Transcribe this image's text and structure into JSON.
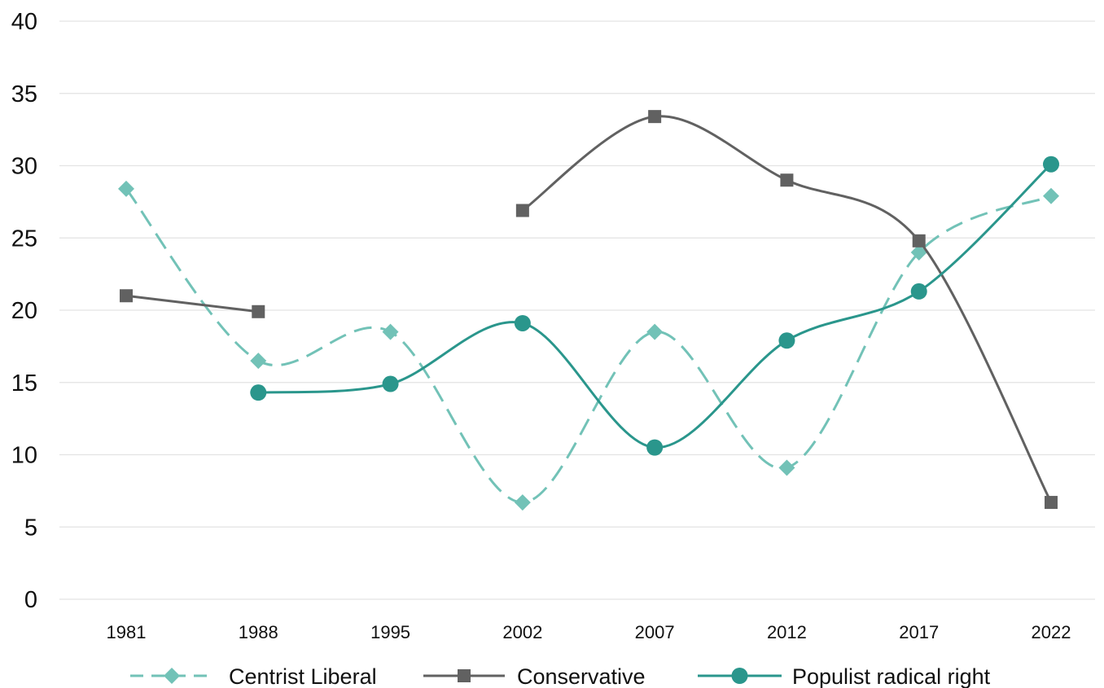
{
  "chart_data": {
    "type": "line",
    "title": "",
    "xlabel": "",
    "ylabel": "",
    "categories": [
      "1981",
      "1988",
      "1995",
      "2002",
      "2007",
      "2012",
      "2017",
      "2022"
    ],
    "ylim": [
      0,
      40
    ],
    "yticks": [
      0,
      5,
      10,
      15,
      20,
      25,
      30,
      35,
      40
    ],
    "grid": "horizontal",
    "legend_position": "bottom",
    "series": [
      {
        "name": "Centrist Liberal",
        "values": [
          28.4,
          16.5,
          18.5,
          6.7,
          18.5,
          9.1,
          24.0,
          27.9
        ],
        "color": "#72c2b7",
        "dash": true,
        "marker": "diamond"
      },
      {
        "name": "Conservative",
        "values": [
          21.0,
          19.9,
          null,
          26.9,
          33.4,
          29.0,
          24.8,
          6.7
        ],
        "color": "#616161",
        "dash": false,
        "marker": "square"
      },
      {
        "name": "Populist radical right",
        "values": [
          null,
          14.3,
          14.9,
          19.1,
          10.5,
          17.9,
          21.3,
          30.1
        ],
        "color": "#2a968c",
        "dash": false,
        "marker": "circle"
      }
    ]
  }
}
